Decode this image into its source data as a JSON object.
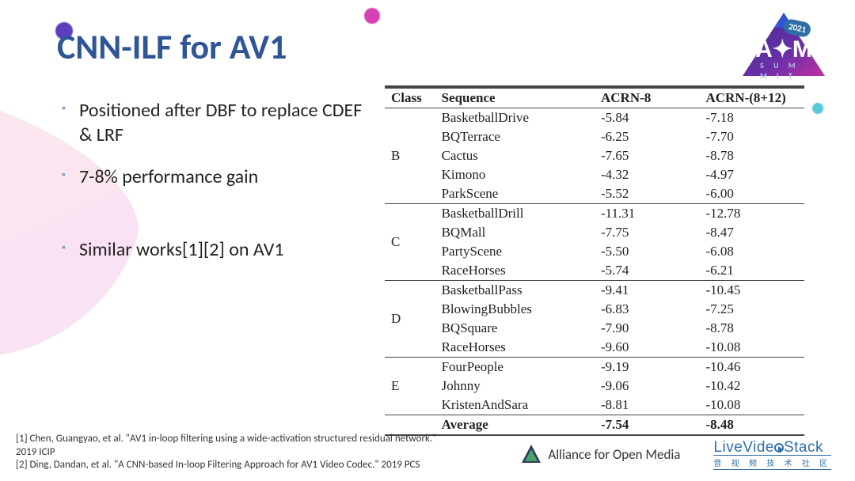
{
  "title": "CNN-ILF for AV1",
  "bullets": [
    "Positioned after DBF to replace CDEF & LRF",
    "7-8% performance gain",
    "Similar works[1][2] on AV1"
  ],
  "table": {
    "columns": [
      "Class",
      "Sequence",
      "ACRN-8",
      "ACRN-(8+12)"
    ],
    "groups": [
      {
        "class": "B",
        "rows": [
          [
            "BasketballDrive",
            "-5.84",
            "-7.18"
          ],
          [
            "BQTerrace",
            "-6.25",
            "-7.70"
          ],
          [
            "Cactus",
            "-7.65",
            "-8.78"
          ],
          [
            "Kimono",
            "-4.32",
            "-4.97"
          ],
          [
            "ParkScene",
            "-5.52",
            "-6.00"
          ]
        ]
      },
      {
        "class": "C",
        "rows": [
          [
            "BasketballDrill",
            "-11.31",
            "-12.78"
          ],
          [
            "BQMall",
            "-7.75",
            "-8.47"
          ],
          [
            "PartyScene",
            "-5.50",
            "-6.08"
          ],
          [
            "RaceHorses",
            "-5.74",
            "-6.21"
          ]
        ]
      },
      {
        "class": "D",
        "rows": [
          [
            "BasketballPass",
            "-9.41",
            "-10.45"
          ],
          [
            "BlowingBubbles",
            "-6.83",
            "-7.25"
          ],
          [
            "BQSquare",
            "-7.90",
            "-8.78"
          ],
          [
            "RaceHorses",
            "-9.60",
            "-10.08"
          ]
        ]
      },
      {
        "class": "E",
        "rows": [
          [
            "FourPeople",
            "-9.19",
            "-10.46"
          ],
          [
            "Johnny",
            "-9.06",
            "-10.42"
          ],
          [
            "KristenAndSara",
            "-8.81",
            "-10.08"
          ]
        ]
      }
    ],
    "average": {
      "label": "Average",
      "acrn8": "-7.54",
      "acrn8_12": "-8.48"
    },
    "col_widths_pct": [
      12,
      38,
      25,
      25
    ],
    "font_family": "Times New Roman",
    "font_size_pt": 12,
    "border_color": "#444444"
  },
  "footnotes": [
    "[1] Chen, Guangyao, et al. \"AV1 in-loop filtering using a wide-activation structured residual network.\" 2019 ICIP",
    "[2] Ding, Dandan, et al. \"A CNN-based In-loop Filtering Approach for AV1 Video Codec.\" 2019 PCS"
  ],
  "footer": {
    "aom_text": "Alliance for Open Media",
    "lvs_text_parts": [
      "Live",
      "Vide",
      "Stack"
    ],
    "lvs_subtitle": "音 视 频 技 术 社 区"
  },
  "corner": {
    "year": "2021",
    "summit": "S U M M I T",
    "triangle_colors": [
      "#3a2f8f",
      "#6b2fa8",
      "#c22fa1"
    ]
  },
  "colors": {
    "title": "#2f5597",
    "bullet_marker": "#7fa0c9",
    "text": "#222222",
    "background": "#ffffff"
  }
}
